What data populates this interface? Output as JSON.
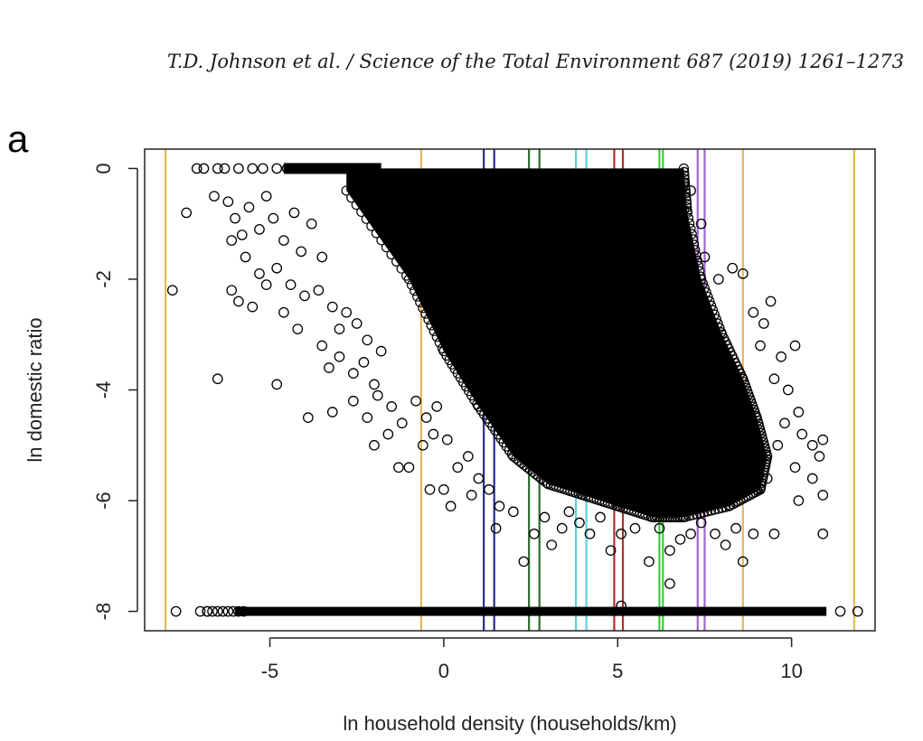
{
  "header": {
    "citation": "T.D. Johnson et al. / Science of the Total Environment 687 (2019) 1261–1273"
  },
  "panel": {
    "label": "a"
  },
  "chart_data": {
    "type": "scatter",
    "title": "",
    "xlabel": "ln household density (households/km)",
    "ylabel": "ln domestic ratio",
    "xlim": [
      -8.6,
      12.4
    ],
    "ylim": [
      -8.35,
      0.35
    ],
    "x_ticks": [
      -5,
      0,
      5,
      10
    ],
    "x_tick_labels": [
      "-5",
      "0",
      "5",
      "10"
    ],
    "y_ticks": [
      0,
      -2,
      -4,
      -6,
      -8
    ],
    "y_tick_labels": [
      "0",
      "-2",
      "-4",
      "-6",
      "-8"
    ],
    "grid": false,
    "legend": "none",
    "marker": "open-circle",
    "dense_region": {
      "x_range": [
        -2.8,
        6.9
      ],
      "upper_y": 0,
      "lower_boundary": [
        [
          -2.8,
          -0.4
        ],
        [
          -1,
          -2
        ],
        [
          0,
          -3.3
        ],
        [
          1,
          -4.3
        ],
        [
          2,
          -5.2
        ],
        [
          3,
          -5.7
        ],
        [
          4,
          -5.9
        ],
        [
          5,
          -6.1
        ],
        [
          6,
          -6.3
        ],
        [
          6.9,
          -6.3
        ]
      ],
      "right_boundary": [
        [
          6.9,
          0
        ],
        [
          7.0,
          -0.8
        ],
        [
          7.4,
          -2
        ],
        [
          8,
          -3
        ],
        [
          8.6,
          -3.8
        ],
        [
          9,
          -4.5
        ],
        [
          9.3,
          -5.2
        ],
        [
          9.1,
          -5.8
        ],
        [
          8.2,
          -6.1
        ],
        [
          6.9,
          -6.3
        ]
      ]
    },
    "bottom_row": {
      "y": -8,
      "x_range": [
        -6.8,
        11.0
      ]
    },
    "vertical_lines": [
      {
        "x": -8.0,
        "color": "#e3b85a"
      },
      {
        "x": -0.65,
        "color": "#e3b85a"
      },
      {
        "x": 1.15,
        "color": "#2b2b8f"
      },
      {
        "x": 1.45,
        "color": "#2b2b8f"
      },
      {
        "x": 2.45,
        "color": "#2e6b2e"
      },
      {
        "x": 2.75,
        "color": "#2e6b2e"
      },
      {
        "x": 3.8,
        "color": "#5fd3d8"
      },
      {
        "x": 4.1,
        "color": "#5fd3d8"
      },
      {
        "x": 4.9,
        "color": "#b03030"
      },
      {
        "x": 5.15,
        "color": "#b03030"
      },
      {
        "x": 6.2,
        "color": "#3ec83e"
      },
      {
        "x": 6.3,
        "color": "#3ec83e"
      },
      {
        "x": 7.3,
        "color": "#a066c8"
      },
      {
        "x": 7.5,
        "color": "#a066c8"
      },
      {
        "x": 8.6,
        "color": "#e3b85a"
      },
      {
        "x": 11.8,
        "color": "#e3b85a"
      }
    ],
    "points": [
      [
        -7.1,
        0
      ],
      [
        -6.9,
        0
      ],
      [
        -6.5,
        0
      ],
      [
        -6.3,
        0
      ],
      [
        -5.9,
        0
      ],
      [
        -5.5,
        0
      ],
      [
        -5.2,
        0
      ],
      [
        -4.8,
        0
      ],
      [
        -4.5,
        0
      ],
      [
        -7.4,
        -0.8
      ],
      [
        -6.6,
        -0.5
      ],
      [
        -6.2,
        -0.6
      ],
      [
        -6.0,
        -0.9
      ],
      [
        -5.8,
        -1.2
      ],
      [
        -5.6,
        -0.7
      ],
      [
        -5.3,
        -1.1
      ],
      [
        -5.1,
        -0.5
      ],
      [
        -4.9,
        -0.9
      ],
      [
        -4.6,
        -1.3
      ],
      [
        -4.3,
        -0.8
      ],
      [
        -4.1,
        -1.5
      ],
      [
        -3.8,
        -1.0
      ],
      [
        -3.5,
        -1.6
      ],
      [
        -6.1,
        -1.3
      ],
      [
        -5.7,
        -1.6
      ],
      [
        -5.3,
        -1.9
      ],
      [
        -4.8,
        -1.8
      ],
      [
        -4.4,
        -2.1
      ],
      [
        -4.0,
        -2.3
      ],
      [
        -3.6,
        -2.2
      ],
      [
        -3.2,
        -2.5
      ],
      [
        -3.0,
        -2.9
      ],
      [
        -2.8,
        -2.6
      ],
      [
        -2.5,
        -2.8
      ],
      [
        -2.2,
        -3.1
      ],
      [
        -7.8,
        -2.2
      ],
      [
        -6.1,
        -2.2
      ],
      [
        -5.9,
        -2.4
      ],
      [
        -5.5,
        -2.5
      ],
      [
        -5.1,
        -2.1
      ],
      [
        -4.6,
        -2.6
      ],
      [
        -4.2,
        -2.9
      ],
      [
        -3.5,
        -3.2
      ],
      [
        -3.3,
        -3.6
      ],
      [
        -3.0,
        -3.4
      ],
      [
        -2.6,
        -3.7
      ],
      [
        -2.3,
        -3.5
      ],
      [
        -2.0,
        -3.9
      ],
      [
        -1.8,
        -3.3
      ],
      [
        -6.5,
        -3.8
      ],
      [
        -4.8,
        -3.9
      ],
      [
        -3.9,
        -4.5
      ],
      [
        -3.2,
        -4.4
      ],
      [
        -2.6,
        -4.2
      ],
      [
        -2.2,
        -4.5
      ],
      [
        -1.9,
        -4.1
      ],
      [
        -1.5,
        -4.3
      ],
      [
        -1.2,
        -4.6
      ],
      [
        -0.8,
        -4.2
      ],
      [
        -0.5,
        -4.5
      ],
      [
        -0.2,
        -4.3
      ],
      [
        -2.0,
        -5.0
      ],
      [
        -1.6,
        -4.8
      ],
      [
        -1.3,
        -5.4
      ],
      [
        -1.0,
        -5.4
      ],
      [
        -0.6,
        -5.0
      ],
      [
        -0.3,
        -4.8
      ],
      [
        0.1,
        -4.9
      ],
      [
        0.4,
        -5.4
      ],
      [
        0.7,
        -5.2
      ],
      [
        1.0,
        -5.6
      ],
      [
        -0.4,
        -5.8
      ],
      [
        0.0,
        -5.8
      ],
      [
        0.2,
        -6.1
      ],
      [
        0.8,
        -5.9
      ],
      [
        1.3,
        -5.8
      ],
      [
        1.6,
        -6.1
      ],
      [
        1.5,
        -6.5
      ],
      [
        2.0,
        -6.2
      ],
      [
        2.3,
        -7.1
      ],
      [
        2.6,
        -6.6
      ],
      [
        2.9,
        -6.3
      ],
      [
        3.1,
        -6.8
      ],
      [
        3.4,
        -6.5
      ],
      [
        3.6,
        -6.2
      ],
      [
        3.9,
        -6.4
      ],
      [
        4.2,
        -6.6
      ],
      [
        4.5,
        -6.3
      ],
      [
        4.8,
        -6.9
      ],
      [
        5.1,
        -6.6
      ],
      [
        5.5,
        -6.5
      ],
      [
        5.9,
        -7.1
      ],
      [
        6.2,
        -6.5
      ],
      [
        6.5,
        -7.5
      ],
      [
        6.5,
        -6.9
      ],
      [
        6.8,
        -6.7
      ],
      [
        7.1,
        -6.6
      ],
      [
        7.4,
        -6.4
      ],
      [
        7.8,
        -6.6
      ],
      [
        8.1,
        -6.8
      ],
      [
        8.4,
        -6.5
      ],
      [
        8.6,
        -7.1
      ],
      [
        8.9,
        -6.6
      ],
      [
        9.5,
        -6.6
      ],
      [
        10.2,
        -6.0
      ],
      [
        10.9,
        -6.6
      ],
      [
        10.9,
        -5.9
      ],
      [
        9.0,
        -5.8
      ],
      [
        9.3,
        -5.6
      ],
      [
        7.1,
        -0.4
      ],
      [
        7.4,
        -1.0
      ],
      [
        7.5,
        -1.6
      ],
      [
        7.9,
        -2.0
      ],
      [
        8.3,
        -1.8
      ],
      [
        8.6,
        -1.9
      ],
      [
        8.9,
        -2.6
      ],
      [
        9.2,
        -2.8
      ],
      [
        9.4,
        -2.4
      ],
      [
        9.1,
        -3.2
      ],
      [
        9.7,
        -3.4
      ],
      [
        10.1,
        -3.2
      ],
      [
        9.5,
        -3.8
      ],
      [
        9.9,
        -4.0
      ],
      [
        10.2,
        -4.4
      ],
      [
        9.8,
        -4.6
      ],
      [
        10.3,
        -4.8
      ],
      [
        10.6,
        -5.0
      ],
      [
        10.8,
        -5.2
      ],
      [
        10.9,
        -4.9
      ],
      [
        10.1,
        -5.4
      ],
      [
        10.6,
        -5.6
      ],
      [
        9.6,
        -5.0
      ],
      [
        5.1,
        -7.9
      ],
      [
        11.4,
        -8.0
      ],
      [
        11.9,
        -8.0
      ],
      [
        -7.7,
        -8.0
      ],
      [
        -7.0,
        -8.0
      ],
      [
        -6.8,
        -8.0
      ]
    ]
  }
}
